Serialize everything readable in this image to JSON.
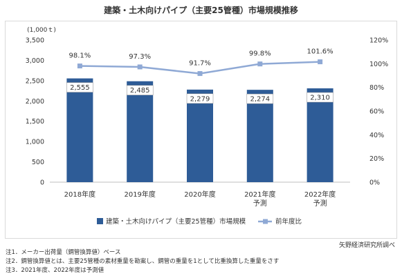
{
  "title": "建築・土木向けパイプ（主要25管種）市場規模推移",
  "chart_data": {
    "type": "bar",
    "categories": [
      [
        "2018年度"
      ],
      [
        "2019年度"
      ],
      [
        "2020年度"
      ],
      [
        "2021年度",
        "予測"
      ],
      [
        "2022年度",
        "予測"
      ]
    ],
    "y_unit": "(1,000ｔ)",
    "ylim": [
      0,
      3500
    ],
    "y_ticks": [
      "0",
      "500",
      "1,000",
      "1,500",
      "2,000",
      "2,500",
      "3,000",
      "3,500"
    ],
    "y2lim": [
      0,
      120
    ],
    "y2_ticks": [
      "0%",
      "20%",
      "40%",
      "60%",
      "80%",
      "100%",
      "120%"
    ],
    "series": [
      {
        "name": "建築・土木向けパイプ（主要25管種）市場規模",
        "type": "bar",
        "axis": "left",
        "values": [
          2555,
          2485,
          2279,
          2274,
          2310
        ],
        "labels": [
          "2,555",
          "2,485",
          "2,279",
          "2,274",
          "2,310"
        ],
        "color": "#2e5c97"
      },
      {
        "name": "前年度比",
        "type": "line",
        "axis": "right",
        "values": [
          98.1,
          97.3,
          91.7,
          99.8,
          101.6
        ],
        "labels": [
          "98.1%",
          "97.3%",
          "91.7%",
          "99.8%",
          "101.6%"
        ],
        "color": "#8fa9d5"
      }
    ],
    "legend_position": "bottom"
  },
  "source": "矢野経済研究所調べ",
  "notes": [
    "注1．メーカー出荷量（鋼管換算値）ベース",
    "注2．鋼管換算値とは、主要25管種の素材重量を勘案し、鋼管の重量を1として比重換算した重量をさす",
    "注3．2021年度、2022年度は予測値"
  ]
}
